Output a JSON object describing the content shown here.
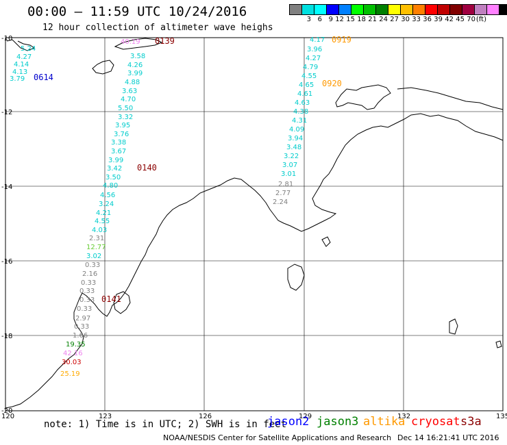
{
  "header": {
    "title": "00:00 – 11:59 UTC 10/24/2016",
    "subtitle": "12 hour collection of altimeter wave heighs"
  },
  "colorbar": {
    "colors": [
      "#808080",
      "#00e0e0",
      "#00ffff",
      "#0000ff",
      "#0080ff",
      "#00ff00",
      "#00c000",
      "#008000",
      "#ffff00",
      "#ffc000",
      "#ff8000",
      "#ff0000",
      "#c00000",
      "#800000",
      "#a00040",
      "#c080c0",
      "#ff80ff",
      "#000000"
    ],
    "labels": [
      "",
      "3",
      "6",
      "9",
      "12",
      "15",
      "18",
      "21",
      "24",
      "27",
      "30",
      "33",
      "36",
      "39",
      "42",
      "45",
      "70",
      "(ft)"
    ]
  },
  "axes": {
    "lat_labels": [
      "-10",
      "-12",
      "-14",
      "-16",
      "-18",
      "-20"
    ],
    "lon_labels": [
      "120",
      "123",
      "126",
      "129",
      "132",
      "135"
    ]
  },
  "passes": [
    {
      "id": "0614",
      "color": "#0000cc"
    },
    {
      "id": "0139",
      "color": "#8b0000"
    },
    {
      "id": "0140",
      "color": "#8b0000"
    },
    {
      "id": "0141",
      "color": "#8b0000"
    },
    {
      "id": "0919",
      "color": "#ff9900"
    },
    {
      "id": "0920",
      "color": "#ff9900"
    }
  ],
  "track_labels": [
    {
      "text": "5.24",
      "color": "#00cccc"
    },
    {
      "text": "4.27",
      "color": "#00cccc"
    },
    {
      "text": "4.14",
      "color": "#00cccc"
    },
    {
      "text": "4.13",
      "color": "#00cccc"
    },
    {
      "text": "3.79",
      "color": "#00cccc"
    },
    {
      "text": "40.19",
      "color": "#ee82ee"
    },
    {
      "text": "3.58",
      "color": "#00cccc"
    },
    {
      "text": "4.26",
      "color": "#00cccc"
    },
    {
      "text": "3.99",
      "color": "#00cccc"
    },
    {
      "text": "4.88",
      "color": "#00cccc"
    },
    {
      "text": "3.63",
      "color": "#00cccc"
    },
    {
      "text": "4.70",
      "color": "#00cccc"
    },
    {
      "text": "5.50",
      "color": "#00cccc"
    },
    {
      "text": "3.32",
      "color": "#00cccc"
    },
    {
      "text": "3.95",
      "color": "#00cccc"
    },
    {
      "text": "3.76",
      "color": "#00cccc"
    },
    {
      "text": "3.38",
      "color": "#00cccc"
    },
    {
      "text": "3.67",
      "color": "#00cccc"
    },
    {
      "text": "3.99",
      "color": "#00cccc"
    },
    {
      "text": "3.42",
      "color": "#00cccc"
    },
    {
      "text": "3.50",
      "color": "#00cccc"
    },
    {
      "text": "4.80",
      "color": "#00cccc"
    },
    {
      "text": "4.56",
      "color": "#00cccc"
    },
    {
      "text": "3.24",
      "color": "#00cccc"
    },
    {
      "text": "4.21",
      "color": "#00cccc"
    },
    {
      "text": "4.55",
      "color": "#00cccc"
    },
    {
      "text": "4.03",
      "color": "#00cccc"
    },
    {
      "text": "2.31",
      "color": "#808080"
    },
    {
      "text": "12.77",
      "color": "#66cc33"
    },
    {
      "text": "3.02",
      "color": "#00cccc"
    },
    {
      "text": "0.33",
      "color": "#808080"
    },
    {
      "text": "2.16",
      "color": "#808080"
    },
    {
      "text": "0.33",
      "color": "#808080"
    },
    {
      "text": "0.33",
      "color": "#808080"
    },
    {
      "text": "0.33",
      "color": "#808080"
    },
    {
      "text": "0.33",
      "color": "#808080"
    },
    {
      "text": "2.97",
      "color": "#808080"
    },
    {
      "text": "0.33",
      "color": "#808080"
    },
    {
      "text": "1.66",
      "color": "#808080"
    },
    {
      "text": "19.35",
      "color": "#008000"
    },
    {
      "text": "42.16",
      "color": "#ee82ee"
    },
    {
      "text": "30.03",
      "color": "#cc0000"
    },
    {
      "text": "25.19",
      "color": "#ffaa00"
    },
    {
      "text": "4.17",
      "color": "#00cccc"
    },
    {
      "text": "3.96",
      "color": "#00cccc"
    },
    {
      "text": "4.27",
      "color": "#00cccc"
    },
    {
      "text": "4.79",
      "color": "#00cccc"
    },
    {
      "text": "4.55",
      "color": "#00cccc"
    },
    {
      "text": "4.65",
      "color": "#00cccc"
    },
    {
      "text": "4.61",
      "color": "#00cccc"
    },
    {
      "text": "4.63",
      "color": "#00cccc"
    },
    {
      "text": "4.38",
      "color": "#00cccc"
    },
    {
      "text": "4.31",
      "color": "#00cccc"
    },
    {
      "text": "4.09",
      "color": "#00cccc"
    },
    {
      "text": "3.94",
      "color": "#00cccc"
    },
    {
      "text": "3.48",
      "color": "#00cccc"
    },
    {
      "text": "3.22",
      "color": "#00cccc"
    },
    {
      "text": "3.07",
      "color": "#00cccc"
    },
    {
      "text": "3.01",
      "color": "#00cccc"
    },
    {
      "text": "2.81",
      "color": "#808080"
    },
    {
      "text": "2.77",
      "color": "#808080"
    },
    {
      "text": "2.24",
      "color": "#808080"
    }
  ],
  "footer": {
    "note": "note: 1) Time is in UTC; 2) SWH is in feet",
    "satellites": [
      {
        "name": "jason2",
        "color": "#0000ff"
      },
      {
        "name": "jason3",
        "color": "#008000"
      },
      {
        "name": "altika",
        "color": "#ff9900"
      },
      {
        "name": "cryosat",
        "color": "#ff0000"
      },
      {
        "name": "s3a",
        "color": "#8b0000"
      }
    ],
    "credit": "NOAA/NESDIS Center for Satellite Applications and Research",
    "timestamp": "Dec 14 16:21:41 UTC 2016"
  }
}
